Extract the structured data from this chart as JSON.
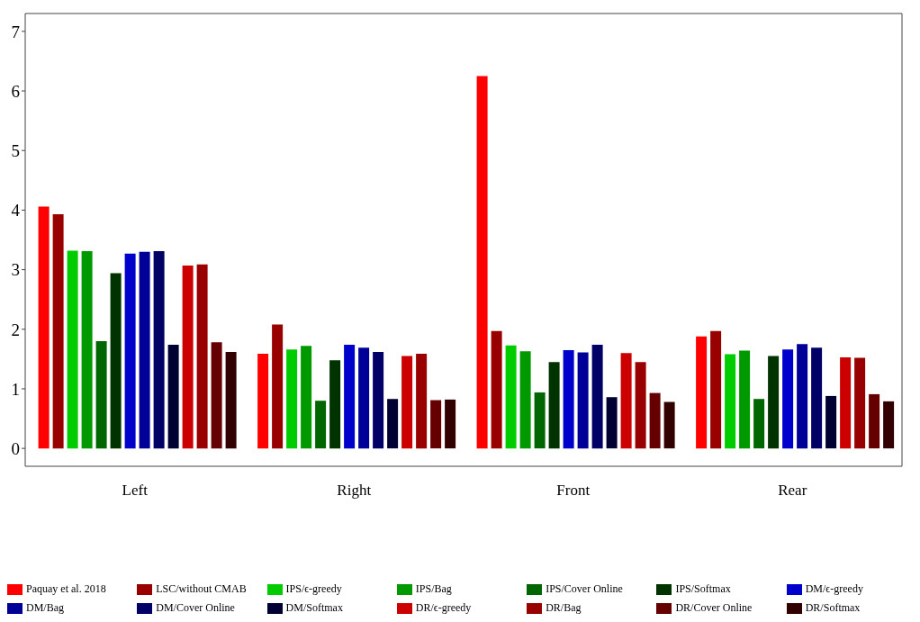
{
  "chart_data": {
    "type": "bar",
    "categories": [
      "Left",
      "Right",
      "Front",
      "Rear"
    ],
    "series": [
      {
        "name": "Paquay et al. 2018",
        "color": "#ff0000",
        "values": [
          4.06,
          1.59,
          6.25,
          1.88
        ]
      },
      {
        "name": "LSC/without CMAB",
        "color": "#990000",
        "values": [
          3.93,
          2.08,
          1.97,
          1.97
        ]
      },
      {
        "name": "IPS/ϵ-greedy",
        "color": "#00cc00",
        "values": [
          3.32,
          1.66,
          1.73,
          1.58
        ]
      },
      {
        "name": "IPS/Bag",
        "color": "#009900",
        "values": [
          3.31,
          1.72,
          1.63,
          1.64
        ]
      },
      {
        "name": "IPS/Cover Online",
        "color": "#006600",
        "values": [
          1.8,
          0.8,
          0.94,
          0.83
        ]
      },
      {
        "name": "IPS/Softmax",
        "color": "#003300",
        "values": [
          2.94,
          1.48,
          1.45,
          1.55
        ]
      },
      {
        "name": "DM/ϵ-greedy",
        "color": "#0000cc",
        "values": [
          3.27,
          1.74,
          1.65,
          1.66
        ]
      },
      {
        "name": "DM/Bag",
        "color": "#000099",
        "values": [
          3.3,
          1.69,
          1.61,
          1.75
        ]
      },
      {
        "name": "DM/Cover Online",
        "color": "#000066",
        "values": [
          3.31,
          1.62,
          1.74,
          1.69
        ]
      },
      {
        "name": "DM/Softmax",
        "color": "#000033",
        "values": [
          1.74,
          0.83,
          0.86,
          0.88
        ]
      },
      {
        "name": "DR/ϵ-greedy",
        "color": "#cc0000",
        "values": [
          3.07,
          1.55,
          1.6,
          1.53
        ]
      },
      {
        "name": "DR/Bag",
        "color": "#990000",
        "values": [
          3.09,
          1.59,
          1.45,
          1.52
        ]
      },
      {
        "name": "DR/Cover Online",
        "color": "#660000",
        "values": [
          1.78,
          0.81,
          0.93,
          0.91
        ]
      },
      {
        "name": "DR/Softmax",
        "color": "#330000",
        "values": [
          1.62,
          0.82,
          0.78,
          0.79
        ]
      }
    ],
    "ylim": [
      -0.3,
      7.3
    ],
    "yticks": [
      0,
      1,
      2,
      3,
      4,
      5,
      6,
      7
    ],
    "grid": false,
    "legend": "bottom"
  }
}
